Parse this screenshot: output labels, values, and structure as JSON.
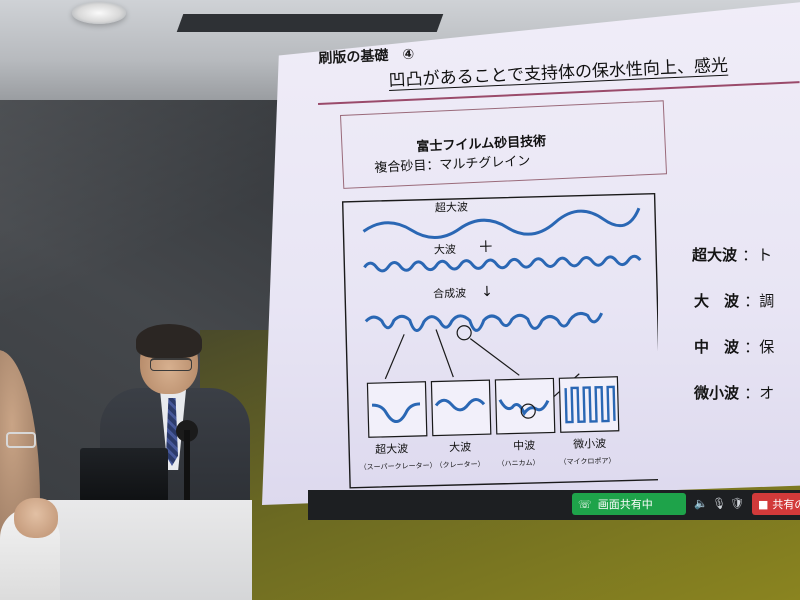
{
  "scene": {
    "colors": {
      "slide_bg": "#ece9f6",
      "accent_rule": "#9a4a6a",
      "wave_blue": "#2a67b4",
      "screen_share_green": "#1ea34a",
      "stop_red": "#d23a3a"
    }
  },
  "slide": {
    "title": "刷版の基礎　④",
    "headline": "凹凸があることで支持体の保水性向上、感光",
    "tech_title": "富士フイルム砂目技術",
    "tech_subtitle": "複合砂目：マルチグレイン",
    "diagram": {
      "labels": {
        "super_wave": "超大波",
        "large_wave": "大波",
        "plus": "＋",
        "combined": "合成波",
        "arrow": "↓"
      },
      "panels": [
        {
          "label": "超大波",
          "sub": "（スーパークレーター）"
        },
        {
          "label": "大波",
          "sub": "（クレーター）"
        },
        {
          "label": "中波",
          "sub": "（ハニカム）"
        },
        {
          "label": "微小波",
          "sub": "（マイクロポア）"
        }
      ]
    },
    "legend": [
      {
        "term": "超大波",
        "value": "：ト"
      },
      {
        "term": "大　波",
        "value": "：調"
      },
      {
        "term": "中　波",
        "value": "：保"
      },
      {
        "term": "微小波",
        "value": "：オ"
      }
    ]
  },
  "taskbar": {
    "share_label": "画面共有中",
    "stop_label": "共有の"
  }
}
